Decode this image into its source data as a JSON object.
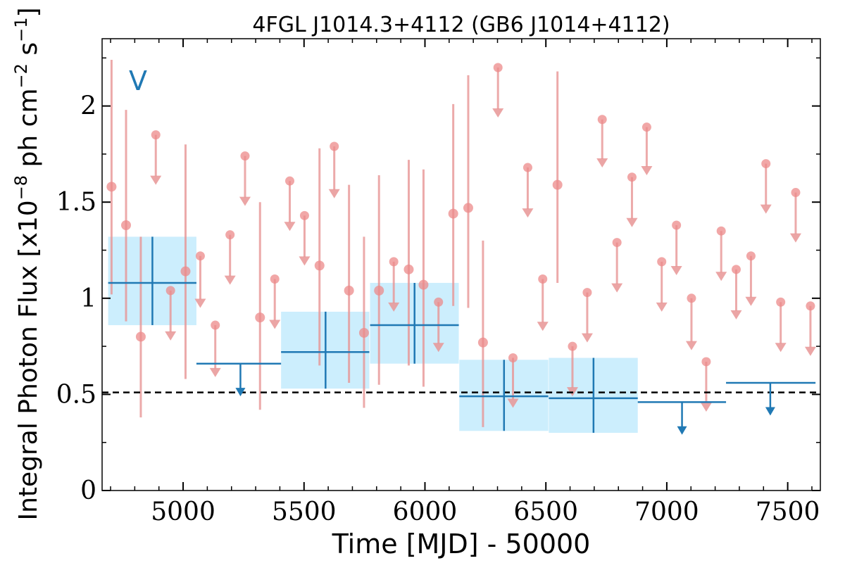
{
  "chart_data": {
    "type": "scatter",
    "title": "4FGL J1014.3+4112 (GB6 J1014+4112)",
    "xlabel": "Time [MJD] - 50000",
    "ylabel_main": "Integral Photon Flux [x10",
    "ylabel_exp1": "−8",
    "ylabel_mid": " ph cm",
    "ylabel_exp2": "−2",
    "ylabel_mid2": " s",
    "ylabel_exp3": "−1",
    "ylabel_end": "]",
    "annotation": "V",
    "xlim": [
      4665,
      7635
    ],
    "ylim": [
      0,
      2.35
    ],
    "x_ticks": [
      5000,
      5500,
      6000,
      6500,
      7000,
      7500
    ],
    "x_tick_labels": [
      "5000",
      "5500",
      "6000",
      "6500",
      "7000",
      "7500"
    ],
    "y_ticks": [
      0,
      0.5,
      1,
      1.5,
      2
    ],
    "y_tick_labels": [
      "0",
      "0.5",
      "1",
      "1.5",
      "2"
    ],
    "reference_level": 0.51,
    "colors": {
      "monthly": "#e89595",
      "monthly_point": "#ec8a8a",
      "yearly": "#2079b4",
      "yearly_band": "#cceefd",
      "reference": "#000000"
    },
    "series": [
      {
        "role": "monthly-detections",
        "points": [
          {
            "x": 4704,
            "y": 1.58,
            "ylo": 1.02,
            "yhi": 2.24
          },
          {
            "x": 4764,
            "y": 1.38,
            "ylo": 0.88,
            "yhi": 1.98
          },
          {
            "x": 4825,
            "y": 0.8,
            "ylo": 0.38,
            "yhi": 1.32
          },
          {
            "x": 5010,
            "y": 1.14,
            "ylo": 0.58,
            "yhi": 1.8
          },
          {
            "x": 5318,
            "y": 0.9,
            "ylo": 0.42,
            "yhi": 1.5
          },
          {
            "x": 5564,
            "y": 1.17,
            "ylo": 0.65,
            "yhi": 1.78
          },
          {
            "x": 5686,
            "y": 1.04,
            "ylo": 0.56,
            "yhi": 1.59
          },
          {
            "x": 5748,
            "y": 0.82,
            "ylo": 0.43,
            "yhi": 1.32
          },
          {
            "x": 5810,
            "y": 1.04,
            "ylo": 0.55,
            "yhi": 1.64
          },
          {
            "x": 5933,
            "y": 1.15,
            "ylo": 0.65,
            "yhi": 1.72
          },
          {
            "x": 5994,
            "y": 1.07,
            "ylo": 0.54,
            "yhi": 1.67
          },
          {
            "x": 6117,
            "y": 1.44,
            "ylo": 0.96,
            "yhi": 2.01
          },
          {
            "x": 6179,
            "y": 1.47,
            "ylo": 0.95,
            "yhi": 2.16
          },
          {
            "x": 6240,
            "y": 0.77,
            "ylo": 0.33,
            "yhi": 1.3
          },
          {
            "x": 6548,
            "y": 1.59,
            "ylo": 1.08,
            "yhi": 2.18
          }
        ]
      },
      {
        "role": "monthly-upper-limits",
        "points": [
          {
            "x": 4887,
            "y": 1.85,
            "arrow_to": 1.59
          },
          {
            "x": 4948,
            "y": 1.04,
            "arrow_to": 0.78
          },
          {
            "x": 5071,
            "y": 1.22,
            "arrow_to": 0.95
          },
          {
            "x": 5133,
            "y": 0.86,
            "arrow_to": 0.59
          },
          {
            "x": 5194,
            "y": 1.33,
            "arrow_to": 1.07
          },
          {
            "x": 5256,
            "y": 1.74,
            "arrow_to": 1.48
          },
          {
            "x": 5379,
            "y": 1.1,
            "arrow_to": 0.84
          },
          {
            "x": 5441,
            "y": 1.61,
            "arrow_to": 1.35
          },
          {
            "x": 5502,
            "y": 1.43,
            "arrow_to": 1.17
          },
          {
            "x": 5625,
            "y": 1.79,
            "arrow_to": 1.52
          },
          {
            "x": 5871,
            "y": 1.19,
            "arrow_to": 0.93
          },
          {
            "x": 6056,
            "y": 0.98,
            "arrow_to": 0.72
          },
          {
            "x": 6302,
            "y": 2.2,
            "arrow_to": 1.94
          },
          {
            "x": 6364,
            "y": 0.69,
            "arrow_to": 0.43
          },
          {
            "x": 6425,
            "y": 1.68,
            "arrow_to": 1.42
          },
          {
            "x": 6487,
            "y": 1.1,
            "arrow_to": 0.83
          },
          {
            "x": 6610,
            "y": 0.75,
            "arrow_to": 0.49
          },
          {
            "x": 6671,
            "y": 1.03,
            "arrow_to": 0.77
          },
          {
            "x": 6733,
            "y": 1.93,
            "arrow_to": 1.68
          },
          {
            "x": 6794,
            "y": 1.29,
            "arrow_to": 1.03
          },
          {
            "x": 6856,
            "y": 1.63,
            "arrow_to": 1.37
          },
          {
            "x": 6917,
            "y": 1.89,
            "arrow_to": 1.64
          },
          {
            "x": 6979,
            "y": 1.19,
            "arrow_to": 0.93
          },
          {
            "x": 7040,
            "y": 1.38,
            "arrow_to": 1.12
          },
          {
            "x": 7102,
            "y": 1.0,
            "arrow_to": 0.73
          },
          {
            "x": 7163,
            "y": 0.67,
            "arrow_to": 0.41
          },
          {
            "x": 7225,
            "y": 1.35,
            "arrow_to": 1.09
          },
          {
            "x": 7287,
            "y": 1.15,
            "arrow_to": 0.89
          },
          {
            "x": 7348,
            "y": 1.22,
            "arrow_to": 0.96
          },
          {
            "x": 7410,
            "y": 1.7,
            "arrow_to": 1.44
          },
          {
            "x": 7471,
            "y": 0.98,
            "arrow_to": 0.72
          },
          {
            "x": 7533,
            "y": 1.55,
            "arrow_to": 1.29
          },
          {
            "x": 7594,
            "y": 0.96,
            "arrow_to": 0.7
          }
        ]
      },
      {
        "role": "yearly-detections",
        "points": [
          {
            "x": 4873,
            "x0": 4690,
            "x1": 5055,
            "y": 1.08,
            "ylo": 0.86,
            "yhi": 1.32
          },
          {
            "x": 5589,
            "x0": 5405,
            "x1": 5770,
            "y": 0.72,
            "ylo": 0.53,
            "yhi": 0.93
          },
          {
            "x": 5957,
            "x0": 5773,
            "x1": 6140,
            "y": 0.86,
            "ylo": 0.66,
            "yhi": 1.08
          },
          {
            "x": 6327,
            "x0": 6142,
            "x1": 6510,
            "y": 0.49,
            "ylo": 0.31,
            "yhi": 0.68
          },
          {
            "x": 6697,
            "x0": 6512,
            "x1": 6880,
            "y": 0.48,
            "ylo": 0.3,
            "yhi": 0.69
          }
        ]
      },
      {
        "role": "yearly-upper-limits",
        "points": [
          {
            "x": 5237,
            "x0": 5055,
            "x1": 5405,
            "y": 0.66,
            "arrow_to": 0.49
          },
          {
            "x": 7063,
            "x0": 6880,
            "x1": 7245,
            "y": 0.46,
            "arrow_to": 0.29
          },
          {
            "x": 7428,
            "x0": 7245,
            "x1": 7615,
            "y": 0.56,
            "arrow_to": 0.39
          }
        ]
      }
    ]
  }
}
